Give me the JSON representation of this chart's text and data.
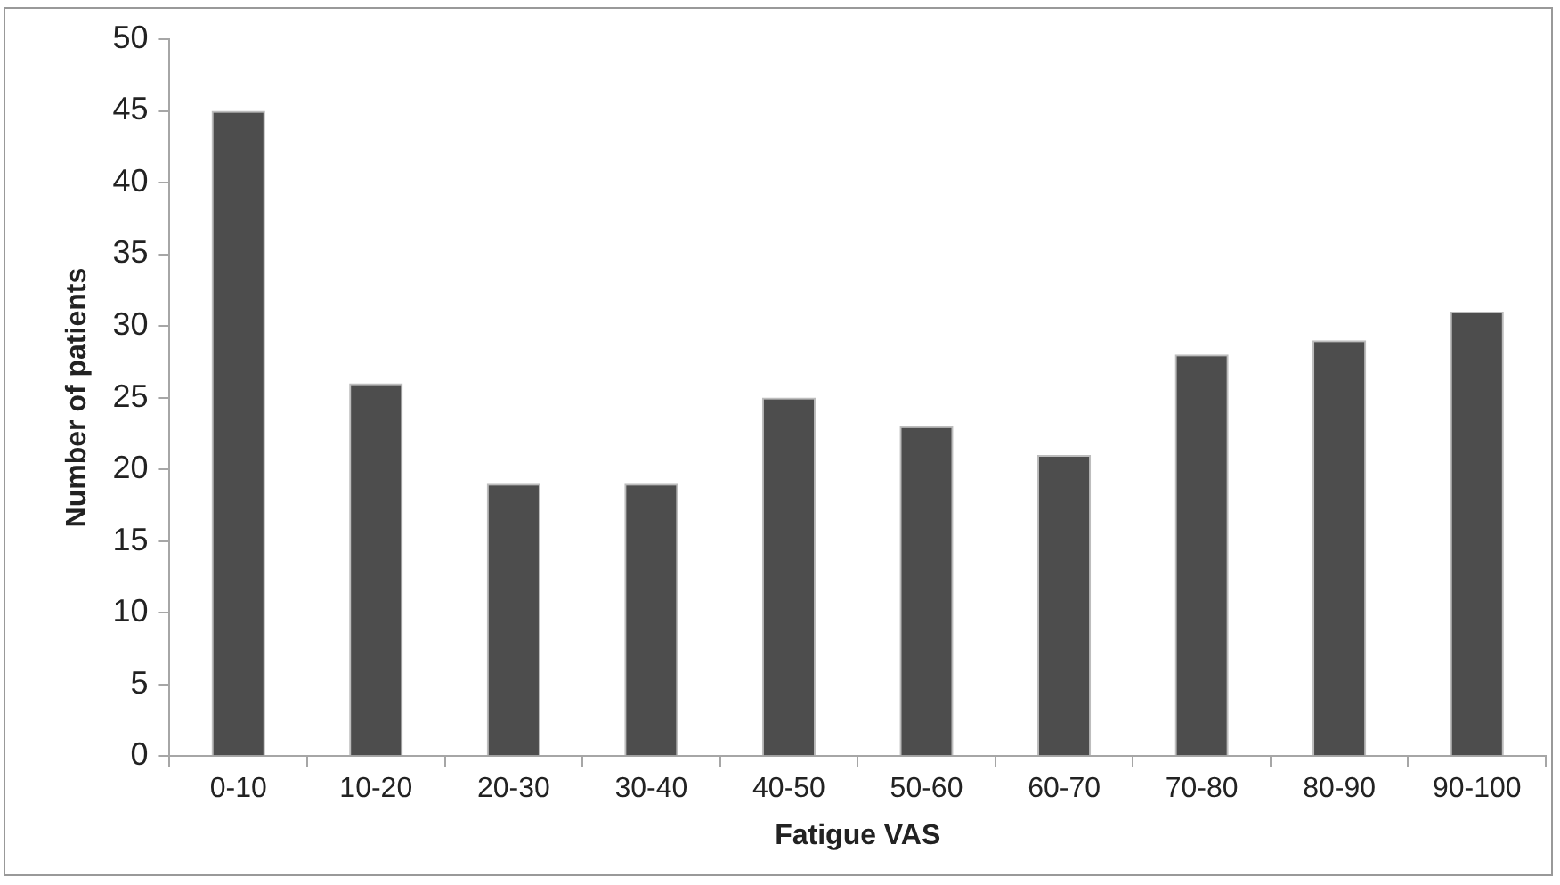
{
  "chart_data": {
    "type": "bar",
    "xlabel": "Fatigue VAS",
    "ylabel": "Number of patients",
    "categories": [
      "0-10",
      "10-20",
      "20-30",
      "30-40",
      "40-50",
      "50-60",
      "60-70",
      "70-80",
      "80-90",
      "90-100"
    ],
    "values": [
      45,
      26,
      19,
      19,
      25,
      23,
      21,
      28,
      29,
      31
    ],
    "color": "#4d4d4d",
    "ylim": [
      0,
      50
    ],
    "yticks": [
      0,
      5,
      10,
      15,
      20,
      25,
      30,
      35,
      40,
      45,
      50
    ],
    "grid": false,
    "legend": false
  }
}
